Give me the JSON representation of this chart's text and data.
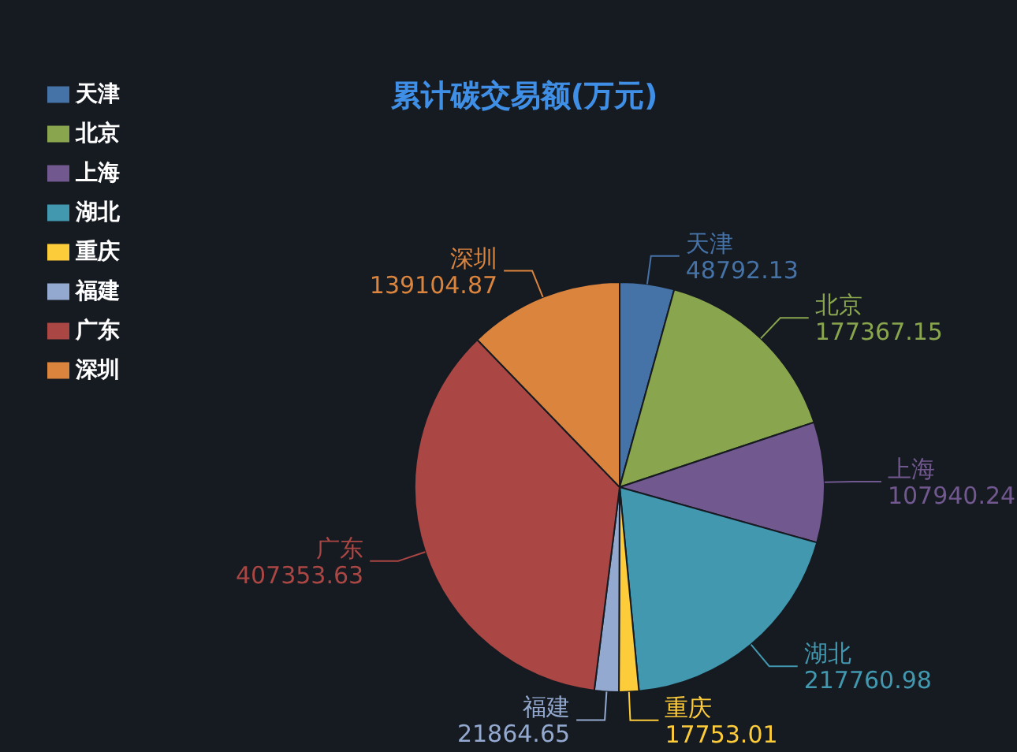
{
  "chart_data": {
    "type": "pie",
    "title": "累计碳交易额(万元)",
    "categories": [
      "天津",
      "北京",
      "上海",
      "湖北",
      "重庆",
      "福建",
      "广东",
      "深圳"
    ],
    "values": [
      48792.13,
      177367.15,
      107940.24,
      217760.98,
      17753.01,
      21864.65,
      407353.63,
      139104.87
    ],
    "colors": [
      "#4572a7",
      "#89a54e",
      "#71588f",
      "#4198af",
      "#fdcc3a",
      "#93a9cf",
      "#aa4643",
      "#db843d"
    ],
    "data_labels": true,
    "legend": "top left"
  }
}
